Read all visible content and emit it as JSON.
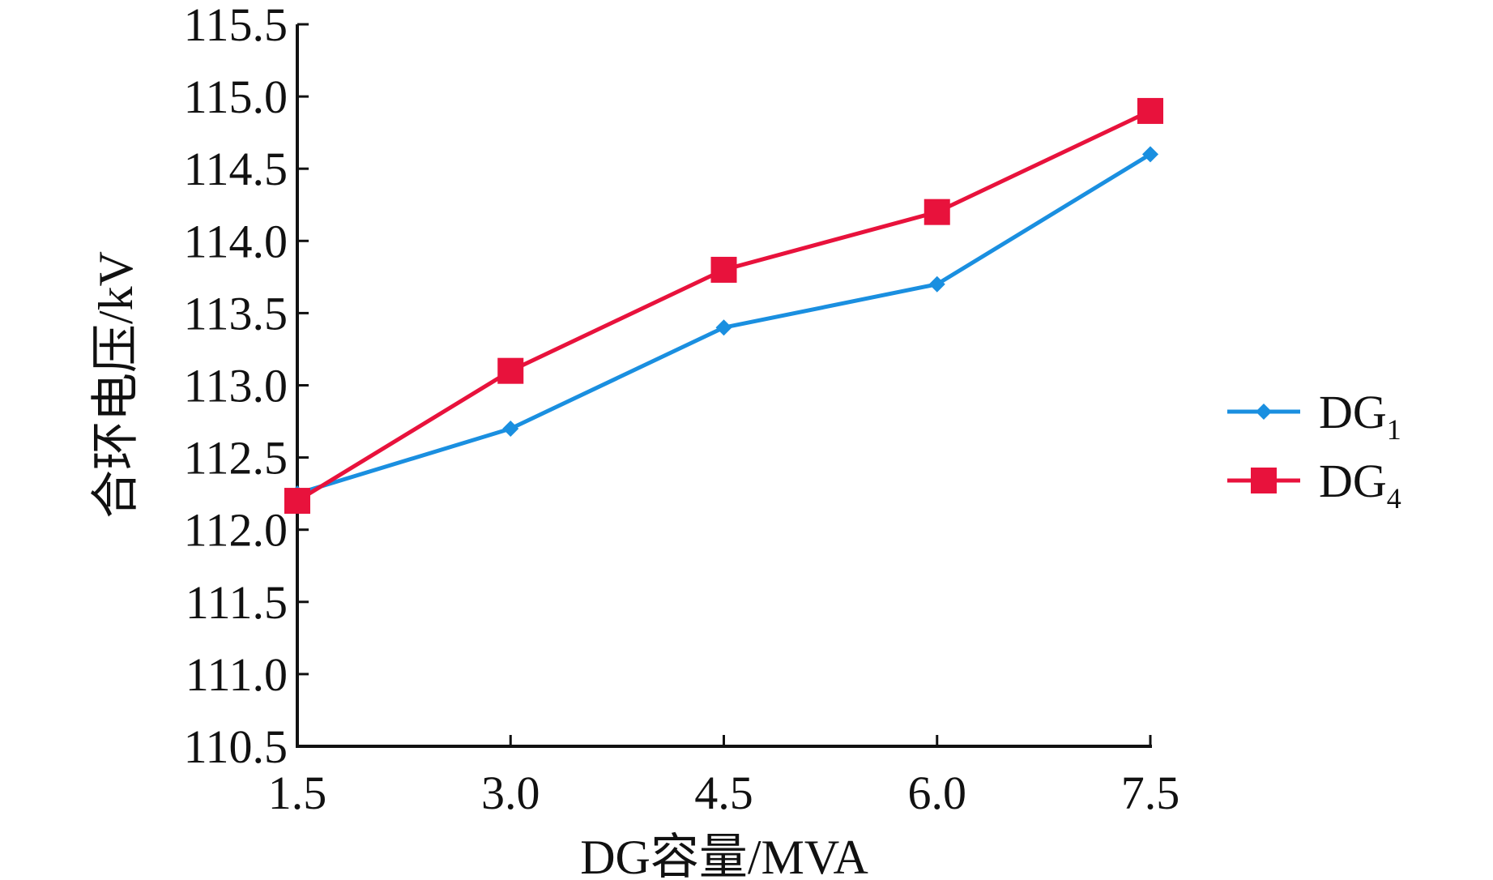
{
  "chart_data": {
    "type": "line",
    "xlabel": "DG容量/MVA",
    "ylabel": "合环电压/kV",
    "x": [
      1.5,
      3.0,
      4.5,
      6.0,
      7.5
    ],
    "x_tick_labels": [
      "1.5",
      "3.0",
      "4.5",
      "6.0",
      "7.5"
    ],
    "y_tick_labels": [
      "110.5",
      "111.0",
      "111.5",
      "112.0",
      "112.5",
      "113.0",
      "113.5",
      "114.0",
      "114.5",
      "115.0",
      "115.5"
    ],
    "xlim": [
      1.5,
      7.5
    ],
    "ylim": [
      110.5,
      115.5
    ],
    "grid": false,
    "legend_position": "right",
    "series": [
      {
        "name_base": "DG",
        "name_sub": "1",
        "color": "#1a8fe0",
        "marker": "diamond",
        "values": [
          112.25,
          112.7,
          113.4,
          113.7,
          114.6
        ]
      },
      {
        "name_base": "DG",
        "name_sub": "4",
        "color": "#e8123c",
        "marker": "square",
        "values": [
          112.2,
          113.1,
          113.8,
          114.2,
          114.9
        ]
      }
    ]
  }
}
